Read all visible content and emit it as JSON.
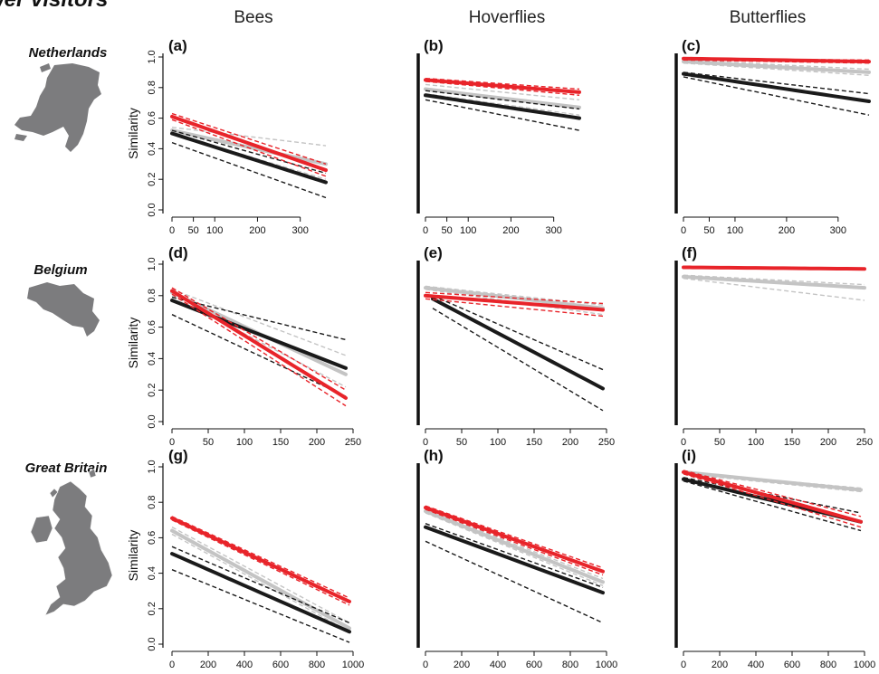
{
  "title": "wer visitors",
  "columns": [
    "Bees",
    "Hoverflies",
    "Butterflies"
  ],
  "rows": [
    "Netherlands",
    "Belgium",
    "Great Britain"
  ],
  "ylabel": "Similarity",
  "colors": {
    "red": "#e8242a",
    "grey": "#c4c4c4",
    "black": "#1a1a1a"
  },
  "icons": [
    "netherlands-map-icon",
    "belgium-map-icon",
    "great-britain-map-icon"
  ],
  "chart_data": [
    {
      "type": "line",
      "panel": "(a)",
      "column": "Bees",
      "row": "Netherlands",
      "xlim": [
        0,
        360
      ],
      "ylim": [
        0,
        1
      ],
      "xticks": [
        0,
        50,
        100,
        200,
        300
      ],
      "yticks": [
        0,
        0.2,
        0.4,
        0.6,
        0.8,
        1.0
      ],
      "show_y_ticks": true,
      "series": [
        {
          "color": "grey",
          "x": [
            0,
            360
          ],
          "y": [
            0.52,
            0.3
          ],
          "ci": [
            [
              0.54,
              0.42
            ],
            [
              0.5,
              0.2
            ]
          ]
        },
        {
          "color": "black",
          "x": [
            0,
            360
          ],
          "y": [
            0.5,
            0.18
          ],
          "ci": [
            [
              0.52,
              0.24
            ],
            [
              0.44,
              0.08
            ]
          ]
        },
        {
          "color": "red",
          "x": [
            0,
            360
          ],
          "y": [
            0.61,
            0.26
          ],
          "ci": [
            [
              0.63,
              0.3
            ],
            [
              0.59,
              0.22
            ]
          ]
        }
      ]
    },
    {
      "type": "line",
      "panel": "(b)",
      "column": "Hoverflies",
      "row": "Netherlands",
      "xlim": [
        0,
        360
      ],
      "ylim": [
        0,
        1
      ],
      "xticks": [
        0,
        50,
        100,
        200,
        300
      ],
      "yticks": [],
      "show_y_ticks": false,
      "series": [
        {
          "color": "grey",
          "x": [
            0,
            360
          ],
          "y": [
            0.79,
            0.67
          ],
          "ci": [
            [
              0.82,
              0.72
            ],
            [
              0.76,
              0.62
            ]
          ]
        },
        {
          "color": "black",
          "x": [
            0,
            360
          ],
          "y": [
            0.75,
            0.6
          ],
          "ci": [
            [
              0.78,
              0.66
            ],
            [
              0.72,
              0.52
            ]
          ]
        },
        {
          "color": "red",
          "x": [
            0,
            360
          ],
          "y": [
            0.85,
            0.77
          ],
          "ci": [
            [
              0.86,
              0.79
            ],
            [
              0.84,
              0.75
            ]
          ]
        }
      ]
    },
    {
      "type": "line",
      "panel": "(c)",
      "column": "Butterflies",
      "row": "Netherlands",
      "xlim": [
        0,
        360
      ],
      "ylim": [
        0,
        1
      ],
      "xticks": [
        0,
        50,
        100,
        200,
        300
      ],
      "yticks": [],
      "show_y_ticks": false,
      "series": [
        {
          "color": "grey",
          "x": [
            0,
            360
          ],
          "y": [
            0.97,
            0.9
          ],
          "ci": [
            [
              0.98,
              0.92
            ],
            [
              0.96,
              0.88
            ]
          ]
        },
        {
          "color": "black",
          "x": [
            0,
            360
          ],
          "y": [
            0.89,
            0.71
          ],
          "ci": [
            [
              0.9,
              0.76
            ],
            [
              0.87,
              0.62
            ]
          ]
        },
        {
          "color": "red",
          "x": [
            0,
            360
          ],
          "y": [
            0.99,
            0.97
          ],
          "ci": [
            [
              0.99,
              0.98
            ],
            [
              0.98,
              0.96
            ]
          ]
        }
      ]
    },
    {
      "type": "line",
      "panel": "(d)",
      "column": "Bees",
      "row": "Belgium",
      "xlim": [
        0,
        250
      ],
      "ylim": [
        0,
        1
      ],
      "xticks": [
        0,
        50,
        100,
        150,
        200,
        250
      ],
      "yticks": [
        0,
        0.2,
        0.4,
        0.6,
        0.8,
        1.0
      ],
      "show_y_ticks": true,
      "series": [
        {
          "color": "grey",
          "x": [
            0,
            240
          ],
          "y": [
            0.82,
            0.3
          ],
          "ci": [
            [
              0.84,
              0.42
            ],
            [
              0.8,
              0.22
            ]
          ]
        },
        {
          "color": "black",
          "x": [
            0,
            240
          ],
          "y": [
            0.77,
            0.34
          ],
          "ci": [
            [
              0.79,
              0.52
            ],
            [
              0.68,
              0.16
            ]
          ]
        },
        {
          "color": "red",
          "x": [
            0,
            240
          ],
          "y": [
            0.83,
            0.15
          ],
          "ci": [
            [
              0.85,
              0.2
            ],
            [
              0.81,
              0.1
            ]
          ]
        }
      ]
    },
    {
      "type": "line",
      "panel": "(e)",
      "column": "Hoverflies",
      "row": "Belgium",
      "xlim": [
        0,
        250
      ],
      "ylim": [
        0,
        1
      ],
      "xticks": [
        0,
        50,
        100,
        150,
        200,
        250
      ],
      "yticks": [],
      "show_y_ticks": false,
      "series": [
        {
          "color": "grey",
          "x": [
            0,
            245
          ],
          "y": [
            0.85,
            0.72
          ],
          "ci": [
            [
              0.86,
              0.74
            ],
            [
              0.84,
              0.68
            ]
          ]
        },
        {
          "color": "black",
          "x": [
            10,
            245
          ],
          "y": [
            0.78,
            0.21
          ],
          "ci": [
            [
              0.8,
              0.33
            ],
            [
              0.72,
              0.07
            ]
          ]
        },
        {
          "color": "red",
          "x": [
            0,
            245
          ],
          "y": [
            0.8,
            0.71
          ],
          "ci": [
            [
              0.82,
              0.75
            ],
            [
              0.78,
              0.67
            ]
          ]
        }
      ]
    },
    {
      "type": "line",
      "panel": "(f)",
      "column": "Butterflies",
      "row": "Belgium",
      "xlim": [
        0,
        250
      ],
      "ylim": [
        0,
        1
      ],
      "xticks": [
        0,
        50,
        100,
        150,
        200,
        250
      ],
      "yticks": [],
      "show_y_ticks": false,
      "series": [
        {
          "color": "grey",
          "x": [
            0,
            250
          ],
          "y": [
            0.92,
            0.85
          ],
          "ci": [
            [
              0.93,
              0.87
            ],
            [
              0.91,
              0.77
            ]
          ]
        },
        {
          "color": "red",
          "x": [
            0,
            250
          ],
          "y": [
            0.98,
            0.97
          ],
          "ci": [
            [
              0.98,
              0.97
            ],
            [
              0.98,
              0.97
            ]
          ]
        }
      ]
    },
    {
      "type": "line",
      "panel": "(g)",
      "column": "Bees",
      "row": "Great Britain",
      "xlim": [
        0,
        1000
      ],
      "ylim": [
        0,
        1
      ],
      "xticks": [
        0,
        200,
        400,
        600,
        800,
        1000
      ],
      "yticks": [
        0,
        0.2,
        0.4,
        0.6,
        0.8,
        1.0
      ],
      "show_y_ticks": true,
      "series": [
        {
          "color": "grey",
          "x": [
            0,
            980
          ],
          "y": [
            0.64,
            0.09
          ],
          "ci": [
            [
              0.66,
              0.12
            ],
            [
              0.62,
              0.07
            ]
          ]
        },
        {
          "color": "black",
          "x": [
            0,
            980
          ],
          "y": [
            0.51,
            0.07
          ],
          "ci": [
            [
              0.55,
              0.12
            ],
            [
              0.42,
              0.01
            ]
          ]
        },
        {
          "color": "red",
          "x": [
            0,
            980
          ],
          "y": [
            0.71,
            0.24
          ],
          "ci": [
            [
              0.72,
              0.26
            ],
            [
              0.7,
              0.22
            ]
          ]
        }
      ]
    },
    {
      "type": "line",
      "panel": "(h)",
      "column": "Hoverflies",
      "row": "Great Britain",
      "xlim": [
        0,
        1000
      ],
      "ylim": [
        0,
        1
      ],
      "xticks": [
        0,
        200,
        400,
        600,
        800,
        1000
      ],
      "yticks": [],
      "show_y_ticks": false,
      "series": [
        {
          "color": "grey",
          "x": [
            0,
            980
          ],
          "y": [
            0.75,
            0.35
          ],
          "ci": [
            [
              0.76,
              0.37
            ],
            [
              0.74,
              0.33
            ]
          ]
        },
        {
          "color": "black",
          "x": [
            0,
            980
          ],
          "y": [
            0.66,
            0.29
          ],
          "ci": [
            [
              0.68,
              0.32
            ],
            [
              0.58,
              0.12
            ]
          ]
        },
        {
          "color": "red",
          "x": [
            0,
            980
          ],
          "y": [
            0.77,
            0.41
          ],
          "ci": [
            [
              0.78,
              0.43
            ],
            [
              0.76,
              0.39
            ]
          ]
        }
      ]
    },
    {
      "type": "line",
      "panel": "(i)",
      "column": "Butterflies",
      "row": "Great Britain",
      "xlim": [
        0,
        1000
      ],
      "ylim": [
        0,
        1
      ],
      "xticks": [
        0,
        200,
        400,
        600,
        800,
        1000
      ],
      "yticks": [],
      "show_y_ticks": false,
      "series": [
        {
          "color": "grey",
          "x": [
            0,
            980
          ],
          "y": [
            0.97,
            0.87
          ],
          "ci": [
            [
              0.97,
              0.88
            ],
            [
              0.96,
              0.86
            ]
          ]
        },
        {
          "color": "black",
          "x": [
            0,
            980
          ],
          "y": [
            0.93,
            0.69
          ],
          "ci": [
            [
              0.94,
              0.74
            ],
            [
              0.92,
              0.64
            ]
          ]
        },
        {
          "color": "red",
          "x": [
            0,
            980
          ],
          "y": [
            0.97,
            0.69
          ],
          "ci": [
            [
              0.98,
              0.72
            ],
            [
              0.96,
              0.66
            ]
          ]
        }
      ]
    }
  ]
}
